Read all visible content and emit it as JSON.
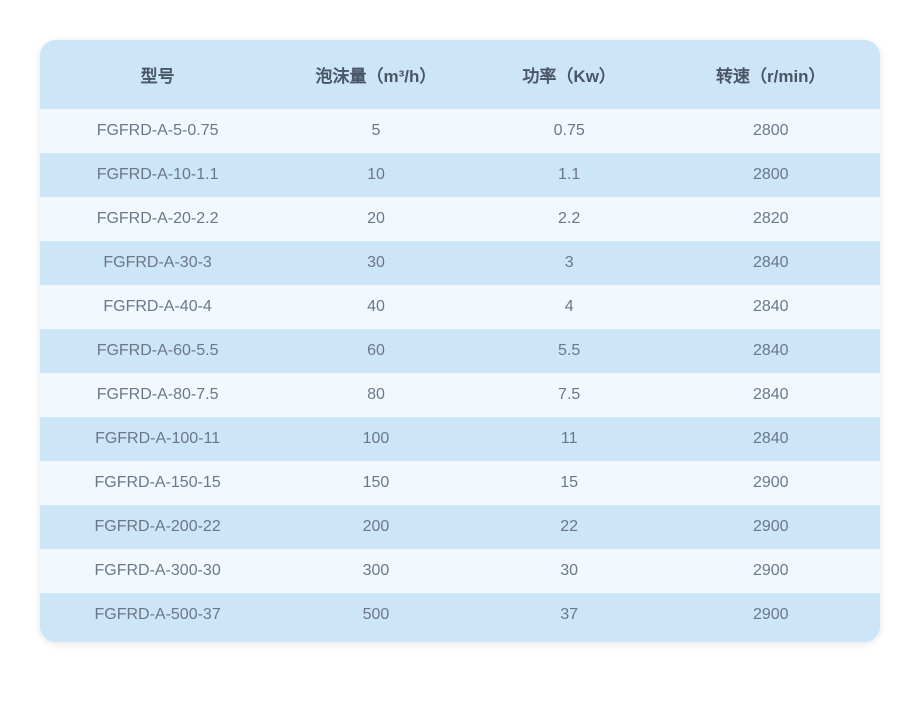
{
  "table": {
    "columns": [
      {
        "key": "model",
        "label": "型号",
        "class": "col-model"
      },
      {
        "key": "foam",
        "label": "泡沫量（m³/h）",
        "class": "col-foam"
      },
      {
        "key": "power",
        "label": "功率（Kw）",
        "class": "col-power"
      },
      {
        "key": "speed",
        "label": "转速（r/min）",
        "class": "col-speed"
      }
    ],
    "rows": [
      {
        "model": "FGFRD-A-5-0.75",
        "foam": "5",
        "power": "0.75",
        "speed": "2800"
      },
      {
        "model": "FGFRD-A-10-1.1",
        "foam": "10",
        "power": "1.1",
        "speed": "2800"
      },
      {
        "model": "FGFRD-A-20-2.2",
        "foam": "20",
        "power": "2.2",
        "speed": "2820"
      },
      {
        "model": "FGFRD-A-30-3",
        "foam": "30",
        "power": "3",
        "speed": "2840"
      },
      {
        "model": "FGFRD-A-40-4",
        "foam": "40",
        "power": "4",
        "speed": "2840"
      },
      {
        "model": "FGFRD-A-60-5.5",
        "foam": "60",
        "power": "5.5",
        "speed": "2840"
      },
      {
        "model": "FGFRD-A-80-7.5",
        "foam": "80",
        "power": "7.5",
        "speed": "2840"
      },
      {
        "model": "FGFRD-A-100-11",
        "foam": "100",
        "power": "11",
        "speed": "2840"
      },
      {
        "model": "FGFRD-A-150-15",
        "foam": "150",
        "power": "15",
        "speed": "2900"
      },
      {
        "model": "FGFRD-A-200-22",
        "foam": "200",
        "power": "22",
        "speed": "2900"
      },
      {
        "model": "FGFRD-A-300-30",
        "foam": "300",
        "power": "30",
        "speed": "2900"
      },
      {
        "model": "FGFRD-A-500-37",
        "foam": "500",
        "power": "37",
        "speed": "2900"
      }
    ],
    "styling": {
      "header_bg": "#cce6f7",
      "odd_row_bg": "#f2f9fe",
      "even_row_bg": "#cce6f7",
      "header_text_color": "#4a5568",
      "body_text_color": "#6b7789",
      "header_fontsize": 17,
      "body_fontsize": 16,
      "border_radius": 16,
      "header_font_weight": 600
    }
  }
}
